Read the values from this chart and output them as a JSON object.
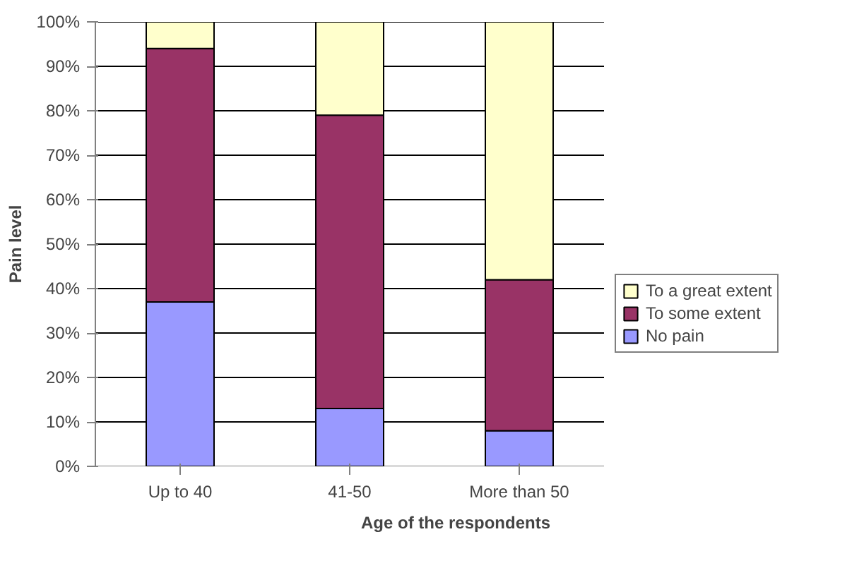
{
  "chart_data": {
    "type": "bar",
    "stacked": true,
    "xlabel": "Age of the respondents",
    "ylabel": "Pain level",
    "categories": [
      "Up to 40",
      "41-50",
      "More than 50"
    ],
    "series": [
      {
        "name": "No pain",
        "color": "#9999ff",
        "values": [
          37,
          13,
          8
        ]
      },
      {
        "name": "To some extent",
        "color": "#993366",
        "values": [
          57,
          66,
          34
        ]
      },
      {
        "name": "To a great extent",
        "color": "#ffffcc",
        "values": [
          6,
          21,
          58
        ]
      }
    ],
    "ylim": [
      0,
      100
    ],
    "yticks": [
      {
        "value": 0,
        "label": "0%"
      },
      {
        "value": 10,
        "label": "10%"
      },
      {
        "value": 20,
        "label": "20%"
      },
      {
        "value": 30,
        "label": "30%"
      },
      {
        "value": 40,
        "label": "40%"
      },
      {
        "value": 50,
        "label": "50%"
      },
      {
        "value": 60,
        "label": "60%"
      },
      {
        "value": 70,
        "label": "70%"
      },
      {
        "value": 80,
        "label": "80%"
      },
      {
        "value": 90,
        "label": "90%"
      },
      {
        "value": 100,
        "label": "100%"
      }
    ],
    "grid": "y",
    "legend": "right"
  }
}
